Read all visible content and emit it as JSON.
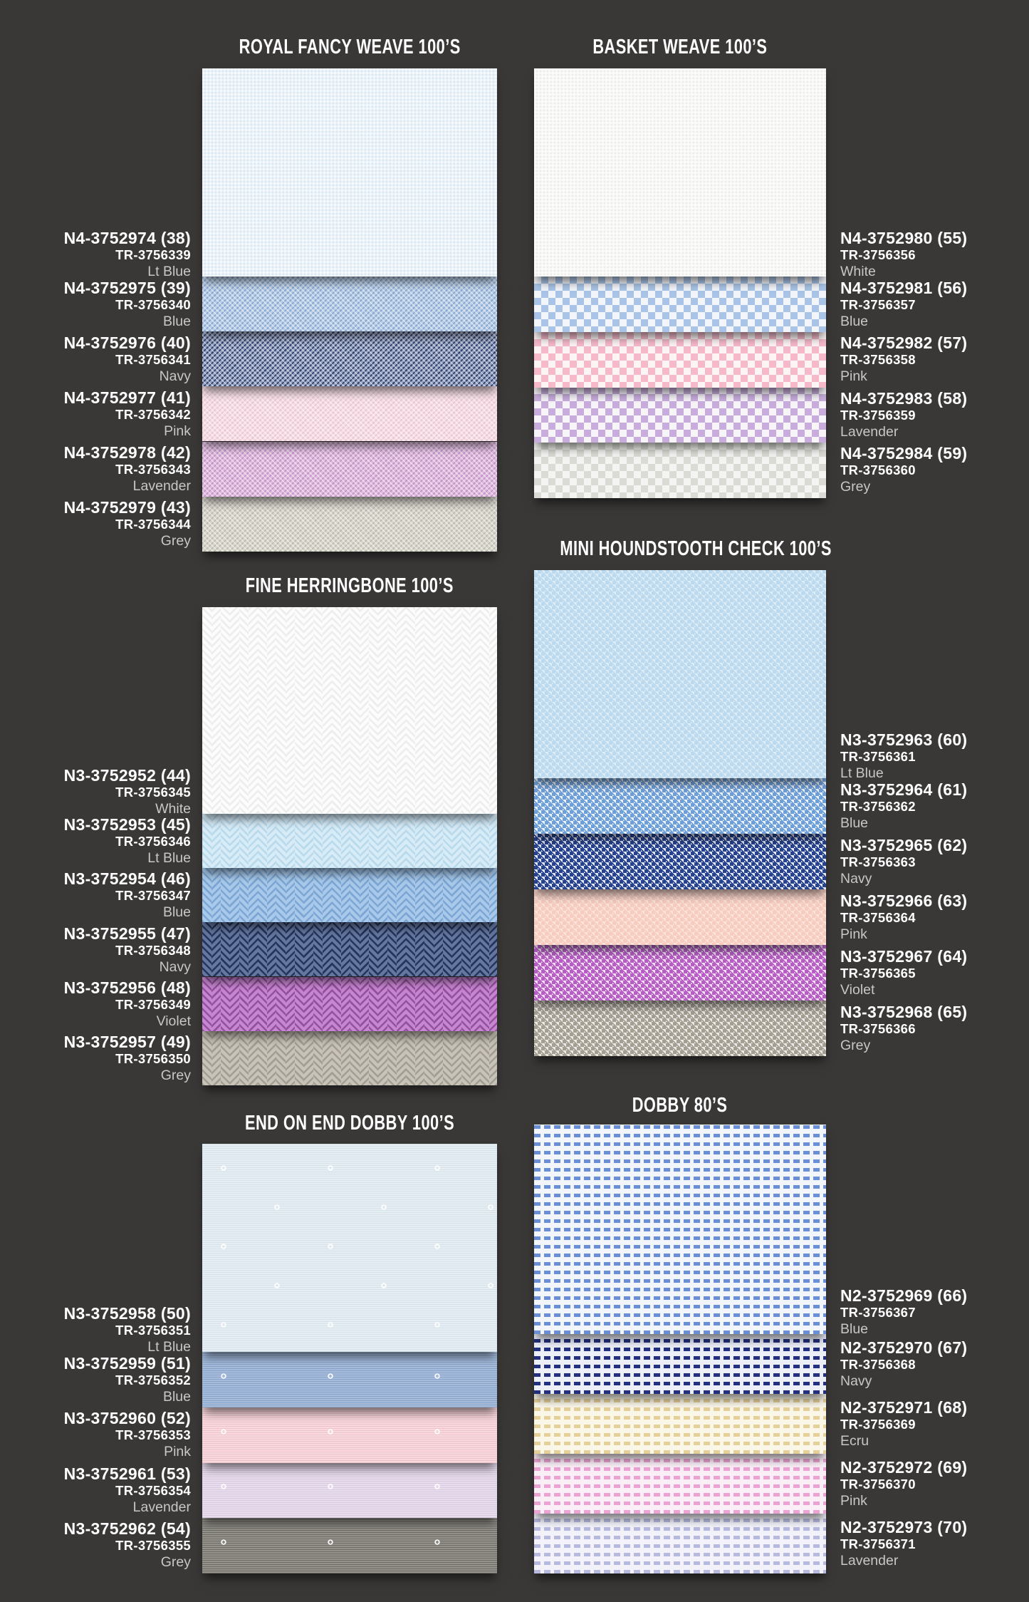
{
  "page": {
    "background": "#3a3837",
    "text_color": "#ffffff",
    "muted_text_color": "#c9c7c4"
  },
  "sections": [
    {
      "id": "royal-fancy-weave",
      "title": "ROYAL FANCY WEAVE 100’S",
      "label_side": "left",
      "swatches": [
        {
          "style": "N4-3752974 (38)",
          "tr": "TR-3756339",
          "color_name": "Lt Blue",
          "pattern": "pinpoint",
          "base": "#ebf2f8",
          "accent": "#d8e7f2"
        },
        {
          "style": "N4-3752975 (39)",
          "tr": "TR-3756340",
          "color_name": "Blue",
          "pattern": "weave",
          "base": "#b9cee7",
          "accent": "#87a6cf"
        },
        {
          "style": "N4-3752976 (40)",
          "tr": "TR-3756341",
          "color_name": "Navy",
          "pattern": "weave",
          "base": "#93a2c2",
          "accent": "#2f3d68"
        },
        {
          "style": "N4-3752977 (41)",
          "tr": "TR-3756342",
          "color_name": "Pink",
          "pattern": "weave",
          "base": "#f7dee6",
          "accent": "#eac6d3"
        },
        {
          "style": "N4-3752978 (42)",
          "tr": "TR-3756343",
          "color_name": "Lavender",
          "pattern": "weave",
          "base": "#e0bcdf",
          "accent": "#c392c6"
        },
        {
          "style": "N4-3752979 (43)",
          "tr": "TR-3756344",
          "color_name": "Grey",
          "pattern": "weave",
          "base": "#d9d6cd",
          "accent": "#bdbaae"
        }
      ]
    },
    {
      "id": "basket-weave",
      "title": "BASKET WEAVE 100’S",
      "label_side": "right",
      "swatches": [
        {
          "style": "N4-3752980 (55)",
          "tr": "TR-3756356",
          "color_name": "White",
          "pattern": "pinpoint",
          "base": "#f8f8f7",
          "accent": "#ebebea"
        },
        {
          "style": "N4-3752981 (56)",
          "tr": "TR-3756357",
          "color_name": "Blue",
          "pattern": "check",
          "base": "#f2f5fa",
          "accent": "#a9c4e6"
        },
        {
          "style": "N4-3752982 (57)",
          "tr": "TR-3756358",
          "color_name": "Pink",
          "pattern": "check",
          "base": "#fdf4f6",
          "accent": "#f5b9ca"
        },
        {
          "style": "N4-3752983 (58)",
          "tr": "TR-3756359",
          "color_name": "Lavender",
          "pattern": "check",
          "base": "#f7f4fa",
          "accent": "#c8addc"
        },
        {
          "style": "N4-3752984 (59)",
          "tr": "TR-3756360",
          "color_name": "Grey",
          "pattern": "check",
          "base": "#f4f4f2",
          "accent": "#dbdbd5"
        }
      ]
    },
    {
      "id": "fine-herringbone",
      "title": "FINE HERRINGBONE 100’S",
      "label_side": "left",
      "swatches": [
        {
          "style": "N3-3752952 (44)",
          "tr": "TR-3756345",
          "color_name": "White",
          "pattern": "herringbone",
          "base": "#fcfcfc",
          "accent": "#ededeb"
        },
        {
          "style": "N3-3752953 (45)",
          "tr": "TR-3756346",
          "color_name": "Lt Blue",
          "pattern": "herringbone",
          "base": "#d8ecf7",
          "accent": "#b9d9ec"
        },
        {
          "style": "N3-3752954 (46)",
          "tr": "TR-3756347",
          "color_name": "Blue",
          "pattern": "herringbone",
          "base": "#a8c9e9",
          "accent": "#7ca6d4"
        },
        {
          "style": "N3-3752955 (47)",
          "tr": "TR-3756348",
          "color_name": "Navy",
          "pattern": "herringbone",
          "base": "#64779f",
          "accent": "#27355c"
        },
        {
          "style": "N3-3752956 (48)",
          "tr": "TR-3756349",
          "color_name": "Violet",
          "pattern": "herringbone",
          "base": "#c787d0",
          "accent": "#94519f"
        },
        {
          "style": "N3-3752957 (49)",
          "tr": "TR-3756350",
          "color_name": "Grey",
          "pattern": "herringbone",
          "base": "#c8c3b9",
          "accent": "#a49e92"
        }
      ]
    },
    {
      "id": "mini-houndstooth-check",
      "title": "MINI HOUNDSTOOTH CHECK 100’S",
      "label_side": "right",
      "swatches": [
        {
          "style": "N3-3752963 (60)",
          "tr": "TR-3756361",
          "color_name": "Lt Blue",
          "pattern": "houndstooth",
          "base": "#ddedf8",
          "accent": "#bcd9ee"
        },
        {
          "style": "N3-3752964 (61)",
          "tr": "TR-3756362",
          "color_name": "Blue",
          "pattern": "houndstooth",
          "base": "#eef5fb",
          "accent": "#6f9fd8"
        },
        {
          "style": "N3-3752965 (62)",
          "tr": "TR-3756363",
          "color_name": "Navy",
          "pattern": "houndstooth",
          "base": "#e9edf6",
          "accent": "#27428f"
        },
        {
          "style": "N3-3752966 (63)",
          "tr": "TR-3756364",
          "color_name": "Pink",
          "pattern": "houndstooth",
          "base": "#fce4da",
          "accent": "#f6cbc0"
        },
        {
          "style": "N3-3752967 (64)",
          "tr": "TR-3756365",
          "color_name": "Violet",
          "pattern": "houndstooth",
          "base": "#f5e3f6",
          "accent": "#b75ec5"
        },
        {
          "style": "N3-3752968 (65)",
          "tr": "TR-3756366",
          "color_name": "Grey",
          "pattern": "houndstooth",
          "base": "#edebe7",
          "accent": "#a59e93"
        }
      ]
    },
    {
      "id": "end-on-end-dobby",
      "title": "END ON END DOBBY 100’S",
      "label_side": "left",
      "swatches": [
        {
          "style": "N3-3752958 (50)",
          "tr": "TR-3756351",
          "color_name": "Lt Blue",
          "pattern": "endonend",
          "base": "#e7eef3",
          "accent": "#d5e2ea"
        },
        {
          "style": "N3-3752959 (51)",
          "tr": "TR-3756352",
          "color_name": "Blue",
          "pattern": "endonend",
          "base": "#a7bcdb",
          "accent": "#89a4cb"
        },
        {
          "style": "N3-3752960 (52)",
          "tr": "TR-3756353",
          "color_name": "Pink",
          "pattern": "endonend",
          "base": "#f8d9dd",
          "accent": "#efc3ca"
        },
        {
          "style": "N3-3752961 (53)",
          "tr": "TR-3756354",
          "color_name": "Lavender",
          "pattern": "endonend",
          "base": "#e8ddec",
          "accent": "#d9c9e1"
        },
        {
          "style": "N3-3752962 (54)",
          "tr": "TR-3756355",
          "color_name": "Grey",
          "pattern": "endonend",
          "base": "#94928b",
          "accent": "#6e6c66"
        }
      ]
    },
    {
      "id": "dobby-80s",
      "title": "DOBBY 80’S",
      "label_side": "right",
      "swatches": [
        {
          "style": "N2-3752969 (66)",
          "tr": "TR-3756367",
          "color_name": "Blue",
          "pattern": "dobby",
          "base": "#f2f6fc",
          "accent": "#6b8fd6"
        },
        {
          "style": "N2-3752970 (67)",
          "tr": "TR-3756368",
          "color_name": "Navy",
          "pattern": "dobby",
          "base": "#eceff8",
          "accent": "#23307f"
        },
        {
          "style": "N2-3752971 (68)",
          "tr": "TR-3756369",
          "color_name": "Ecru",
          "pattern": "dobby",
          "base": "#faf6e8",
          "accent": "#e5d09a"
        },
        {
          "style": "N2-3752972 (69)",
          "tr": "TR-3756370",
          "color_name": "Pink",
          "pattern": "dobby",
          "base": "#fbeff7",
          "accent": "#eca3d4"
        },
        {
          "style": "N2-3752973 (70)",
          "tr": "TR-3756371",
          "color_name": "Lavender",
          "pattern": "dobby",
          "base": "#f3f2fa",
          "accent": "#b7badf"
        }
      ]
    }
  ]
}
